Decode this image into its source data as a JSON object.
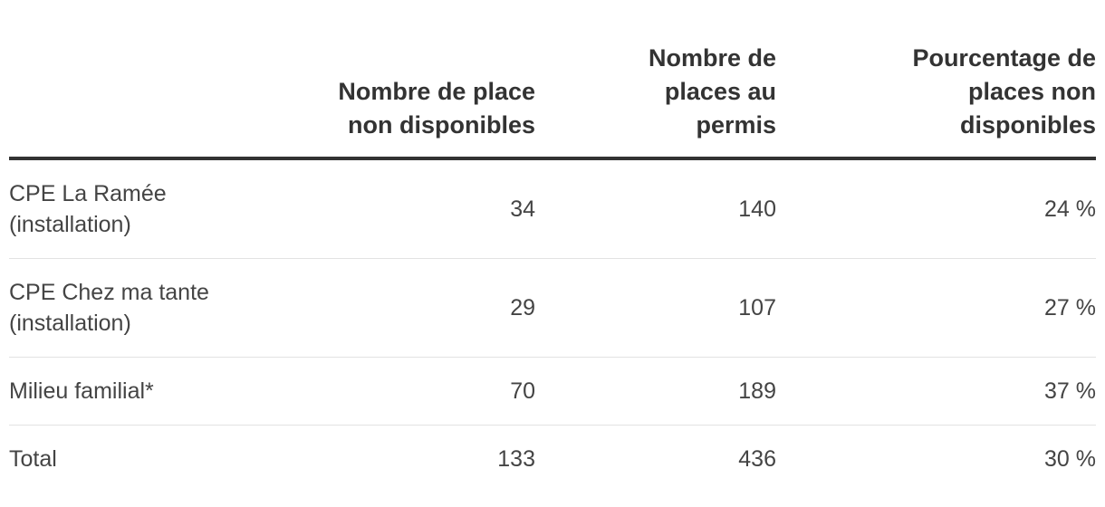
{
  "table": {
    "header": [
      "",
      "Nombre de place non disponibles",
      "Nombre de places au permis",
      "Pourcentage de places non disponibles"
    ],
    "rows": [
      [
        "CPE La Ramée (installation)",
        "34",
        "140",
        "24 %"
      ],
      [
        "CPE Chez ma tante (installation)",
        "29",
        "107",
        "27 %"
      ],
      [
        "Milieu familial*",
        "70",
        "189",
        "37 %"
      ],
      [
        "Total",
        "133",
        "436",
        "30 %"
      ]
    ]
  }
}
